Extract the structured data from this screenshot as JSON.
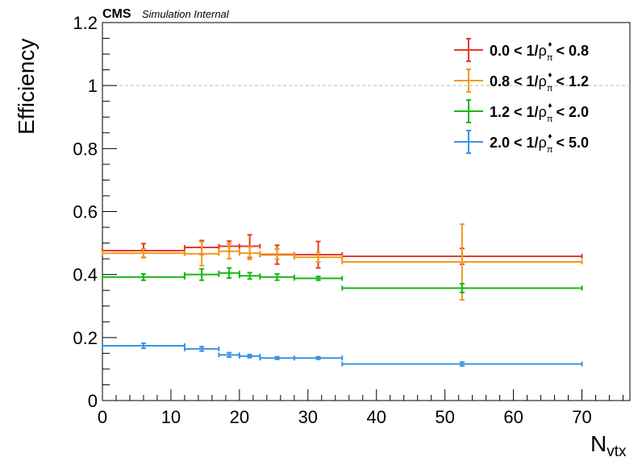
{
  "header": {
    "experiment": "CMS",
    "status": "Simulation Internal"
  },
  "chart_data": {
    "type": "scatter",
    "ylabel": "Efficiency",
    "xlabel_main": "N",
    "xlabel_sub": "vtx",
    "xlim": [
      0,
      77
    ],
    "ylim": [
      0,
      1.2
    ],
    "reference_line": 1.0,
    "x_ticks": [
      0,
      10,
      20,
      30,
      40,
      50,
      60,
      70
    ],
    "x_tick_labels": [
      "0",
      "10",
      "20",
      "30",
      "40",
      "50",
      "60",
      "70"
    ],
    "y_ticks": [
      0,
      0.2,
      0.4,
      0.6,
      0.8,
      1,
      1.2
    ],
    "y_tick_labels": [
      "0",
      "0.2",
      "0.4",
      "0.6",
      "0.8",
      "1",
      "1.2"
    ],
    "legend_position": "top-right",
    "series": [
      {
        "name": "0.0 < 1/ρπ♦ < 0.8",
        "legend": {
          "pre": "0.0 < 1/",
          "rho": "ρ",
          "sub": "π",
          "sup": "♦",
          "post": " < 0.8"
        },
        "color": "#e8392b",
        "points": [
          {
            "x": 6,
            "xlo": 0,
            "xhi": 12,
            "y": 0.476,
            "err": 0.022
          },
          {
            "x": 14.5,
            "xlo": 12,
            "xhi": 17,
            "y": 0.486,
            "err": 0.022
          },
          {
            "x": 18.5,
            "xlo": 17,
            "xhi": 20,
            "y": 0.49,
            "err": 0.016
          },
          {
            "x": 21.5,
            "xlo": 20,
            "xhi": 23,
            "y": 0.49,
            "err": 0.036
          },
          {
            "x": 25.5,
            "xlo": 23,
            "xhi": 28,
            "y": 0.463,
            "err": 0.03
          },
          {
            "x": 31.5,
            "xlo": 28,
            "xhi": 35,
            "y": 0.463,
            "err": 0.042
          },
          {
            "x": 52.5,
            "xlo": 35,
            "xhi": 70,
            "y": 0.458,
            "err": 0.025
          }
        ]
      },
      {
        "name": "0.8 < 1/ρπ♦ < 1.2",
        "legend": {
          "pre": "0.8 < 1/",
          "rho": "ρ",
          "sub": "π",
          "sup": "♦",
          "post": " < 1.2"
        },
        "color": "#f29a1b",
        "points": [
          {
            "x": 6,
            "xlo": 0,
            "xhi": 12,
            "y": 0.468,
            "err": 0.013
          },
          {
            "x": 14.5,
            "xlo": 12,
            "xhi": 17,
            "y": 0.466,
            "err": 0.038
          },
          {
            "x": 18.5,
            "xlo": 17,
            "xhi": 20,
            "y": 0.474,
            "err": 0.024
          },
          {
            "x": 21.5,
            "xlo": 20,
            "xhi": 23,
            "y": 0.468,
            "err": 0.02
          },
          {
            "x": 25.5,
            "xlo": 23,
            "xhi": 28,
            "y": 0.465,
            "err": 0.016
          },
          {
            "x": 31.5,
            "xlo": 28,
            "xhi": 35,
            "y": 0.455,
            "err": 0.015
          },
          {
            "x": 52.5,
            "xlo": 35,
            "xhi": 70,
            "y": 0.44,
            "err": 0.12
          }
        ]
      },
      {
        "name": "1.2 < 1/ρπ♦ < 2.0",
        "legend": {
          "pre": "1.2 < 1/",
          "rho": "ρ",
          "sub": "π",
          "sup": "♦",
          "post": " < 2.0"
        },
        "color": "#17b614",
        "points": [
          {
            "x": 6,
            "xlo": 0,
            "xhi": 12,
            "y": 0.392,
            "err": 0.01
          },
          {
            "x": 14.5,
            "xlo": 12,
            "xhi": 17,
            "y": 0.4,
            "err": 0.018
          },
          {
            "x": 18.5,
            "xlo": 17,
            "xhi": 20,
            "y": 0.405,
            "err": 0.016
          },
          {
            "x": 21.5,
            "xlo": 20,
            "xhi": 23,
            "y": 0.396,
            "err": 0.01
          },
          {
            "x": 25.5,
            "xlo": 23,
            "xhi": 28,
            "y": 0.392,
            "err": 0.01
          },
          {
            "x": 31.5,
            "xlo": 28,
            "xhi": 35,
            "y": 0.388,
            "err": 0.006
          },
          {
            "x": 52.5,
            "xlo": 35,
            "xhi": 70,
            "y": 0.357,
            "err": 0.014
          }
        ]
      },
      {
        "name": "2.0 < 1/ρπ♦ < 5.0",
        "legend": {
          "pre": "2.0 < 1/",
          "rho": "ρ",
          "sub": "π",
          "sup": "♦",
          "post": " < 5.0"
        },
        "color": "#3a93e3",
        "points": [
          {
            "x": 6,
            "xlo": 0,
            "xhi": 12,
            "y": 0.174,
            "err": 0.008
          },
          {
            "x": 14.5,
            "xlo": 12,
            "xhi": 17,
            "y": 0.164,
            "err": 0.007
          },
          {
            "x": 18.5,
            "xlo": 17,
            "xhi": 20,
            "y": 0.145,
            "err": 0.007
          },
          {
            "x": 21.5,
            "xlo": 20,
            "xhi": 23,
            "y": 0.141,
            "err": 0.005
          },
          {
            "x": 25.5,
            "xlo": 23,
            "xhi": 28,
            "y": 0.135,
            "err": 0.004
          },
          {
            "x": 31.5,
            "xlo": 28,
            "xhi": 35,
            "y": 0.135,
            "err": 0.004
          },
          {
            "x": 52.5,
            "xlo": 35,
            "xhi": 70,
            "y": 0.116,
            "err": 0.006
          }
        ]
      }
    ]
  }
}
